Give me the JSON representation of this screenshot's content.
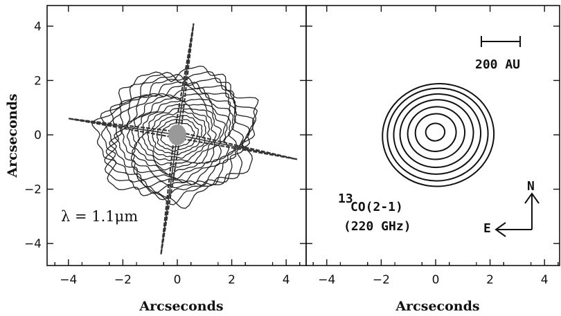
{
  "chart_data": [
    {
      "type": "contour",
      "panel": "left",
      "xlabel": "Arcseconds",
      "ylabel": "Arcseconds",
      "xlim": [
        -4.8,
        4.8
      ],
      "ylim": [
        -4.8,
        4.8
      ],
      "xticks": [
        "-4",
        "-2",
        "0",
        "2",
        "4"
      ],
      "yticks": [
        "-4",
        "-2",
        "0",
        "2",
        "4"
      ],
      "annotation": "λ = 1.1μm",
      "contour_count": 16,
      "spike_ends": [
        [
          -4.0,
          0.6
        ],
        [
          4.4,
          -0.9
        ],
        [
          0.6,
          4.1
        ],
        [
          -0.6,
          -4.4
        ]
      ]
    },
    {
      "type": "contour",
      "panel": "right",
      "xlabel": "Arcseconds",
      "xlim": [
        -4.8,
        4.8
      ],
      "ylim": [
        -4.8,
        4.8
      ],
      "xticks": [
        "-4",
        "-2",
        "0",
        "2",
        "4"
      ],
      "line_label": "CO(2-1)",
      "line_label_superscript": "13",
      "frequency_label": "(220 GHz)",
      "contour_radii_arcsec": [
        0.35,
        0.75,
        1.05,
        1.35,
        1.6,
        1.85,
        2.05
      ],
      "scale_bar_label": "200 AU",
      "compass": {
        "north": "N",
        "east": "E"
      }
    }
  ]
}
